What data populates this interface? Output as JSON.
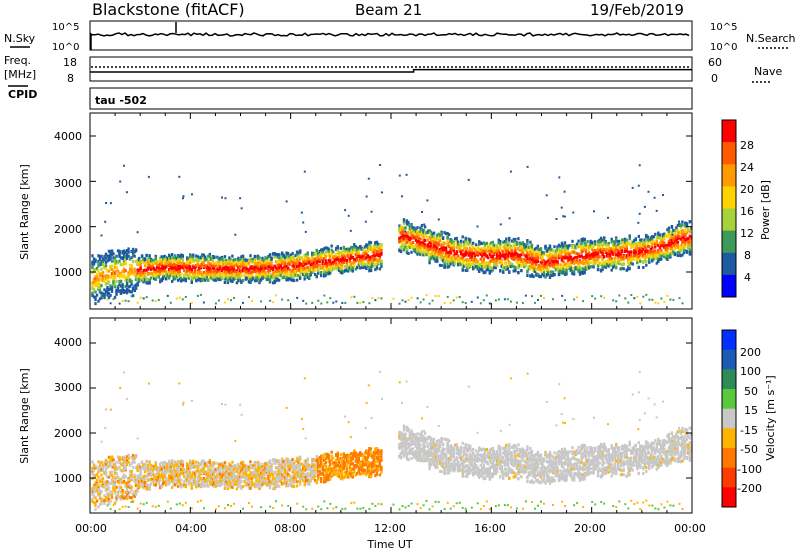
{
  "header": {
    "station": "Blackstone (fitACF)",
    "beam": "Beam 21",
    "date": "19/Feb/2019"
  },
  "top_panels": {
    "nsky_label": "N.Sky",
    "nsearch_label": "N.Search",
    "nsky_ticks": [
      "10^5",
      "10^0"
    ],
    "nsearch_ticks": [
      "10^5",
      "10^0"
    ],
    "freq_label_1": "Freq.",
    "freq_label_2": "[MHz]",
    "freq_ticks": [
      "18",
      "8"
    ],
    "nave_label": "Nave",
    "nave_ticks": [
      "60",
      "0"
    ],
    "cpid_label": "CPID",
    "cpid_value": "tau -502"
  },
  "colorbars": {
    "power": {
      "label": "Power [dB]",
      "ticks": [
        "28",
        "24",
        "20",
        "16",
        "12",
        "8",
        "4"
      ],
      "colors": [
        "#ff0000",
        "#ff5a00",
        "#ff9a00",
        "#ffd200",
        "#a8d23c",
        "#3c9a5a",
        "#1e5aa0",
        "#0000ff"
      ]
    },
    "velocity": {
      "label": "Velocity [m s⁻¹]",
      "ticks": [
        "200",
        "100",
        "50",
        "15",
        "-15",
        "-50",
        "-100",
        "-200"
      ],
      "colors": [
        "#0030ff",
        "#1e5ab4",
        "#2e8b57",
        "#5ac83c",
        "#c8c8c8",
        "#ffb400",
        "#ff7800",
        "#ff3c00",
        "#ff0000"
      ]
    }
  },
  "axes": {
    "ylabel": "Slant Range [km]",
    "yticks": [
      "4000",
      "3000",
      "2000",
      "1000"
    ],
    "xticks": [
      "00:00",
      "04:00",
      "08:00",
      "12:00",
      "16:00",
      "20:00",
      "00:00"
    ],
    "xlabel": "Time UT"
  },
  "chart_data": {
    "type": "heatmap",
    "x_unit": "hours UT",
    "y_unit": "km",
    "xlim": [
      0,
      24
    ],
    "ylim": [
      180,
      4500
    ],
    "frequency_mhz": [
      {
        "x": 0,
        "y": 10.5
      },
      {
        "x": 12.9,
        "y": 11.5
      },
      {
        "x": 24,
        "y": 11.5
      }
    ],
    "scatter_band": [
      {
        "x": 0,
        "y": 830
      },
      {
        "x": 1,
        "y": 1000
      },
      {
        "x": 2,
        "y": 1050
      },
      {
        "x": 3,
        "y": 1100
      },
      {
        "x": 4,
        "y": 1080
      },
      {
        "x": 5,
        "y": 1070
      },
      {
        "x": 6,
        "y": 1060
      },
      {
        "x": 7,
        "y": 1080
      },
      {
        "x": 8,
        "y": 1120
      },
      {
        "x": 9,
        "y": 1200
      },
      {
        "x": 10,
        "y": 1270
      },
      {
        "x": 10.9,
        "y": 1330
      },
      {
        "x": 11.5,
        "y": 1380
      },
      {
        "x": 12.4,
        "y": 1800
      },
      {
        "x": 13.5,
        "y": 1600
      },
      {
        "x": 14.5,
        "y": 1420
      },
      {
        "x": 15.5,
        "y": 1350
      },
      {
        "x": 16.2,
        "y": 1350
      },
      {
        "x": 17,
        "y": 1380
      },
      {
        "x": 18,
        "y": 1200
      },
      {
        "x": 19,
        "y": 1300
      },
      {
        "x": 20,
        "y": 1380
      },
      {
        "x": 21,
        "y": 1400
      },
      {
        "x": 22,
        "y": 1450
      },
      {
        "x": 22.7,
        "y": 1550
      },
      {
        "x": 23.6,
        "y": 1750
      }
    ]
  }
}
